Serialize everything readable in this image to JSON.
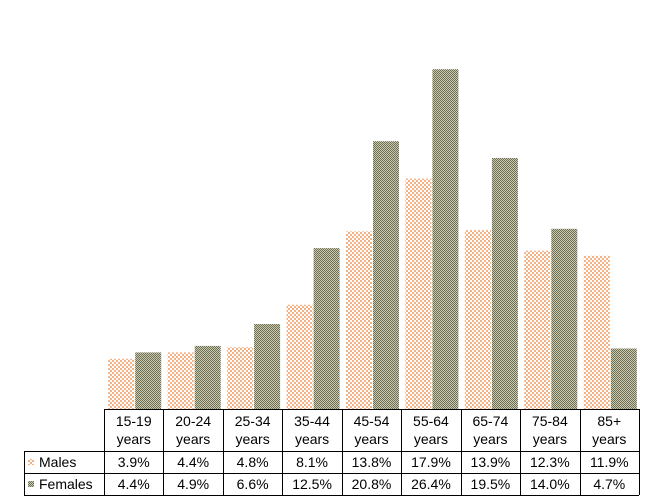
{
  "chart_data": {
    "type": "bar",
    "categories": [
      [
        "15-19",
        "years"
      ],
      [
        "20-24",
        "years"
      ],
      [
        "25-34",
        "years"
      ],
      [
        "35-44",
        "years"
      ],
      [
        "45-54",
        "years"
      ],
      [
        "55-64",
        "years"
      ],
      [
        "65-74",
        "years"
      ],
      [
        "75-84",
        "years"
      ],
      [
        "85+",
        "years"
      ]
    ],
    "series": [
      {
        "name": "Males",
        "values": [
          3.9,
          4.4,
          4.8,
          8.1,
          13.8,
          17.9,
          13.9,
          12.3,
          11.9
        ],
        "labels": [
          "3.9%",
          "4.4%",
          "4.8%",
          "8.1%",
          "13.8%",
          "17.9%",
          "13.9%",
          "12.3%",
          "11.9%"
        ],
        "color": "#f4b183",
        "pattern": "checker"
      },
      {
        "name": "Females",
        "values": [
          4.4,
          4.9,
          6.6,
          12.5,
          20.8,
          26.4,
          19.5,
          14.0,
          4.7
        ],
        "labels": [
          "4.4%",
          "4.9%",
          "6.6%",
          "12.5%",
          "20.8%",
          "26.4%",
          "19.5%",
          "14.0%",
          "4.7%"
        ],
        "color": "#8c8c6a",
        "pattern": "fine-checker"
      }
    ],
    "ylim": [
      0,
      27.5
    ],
    "data_table": true,
    "legend": "in-table",
    "grid": false
  }
}
